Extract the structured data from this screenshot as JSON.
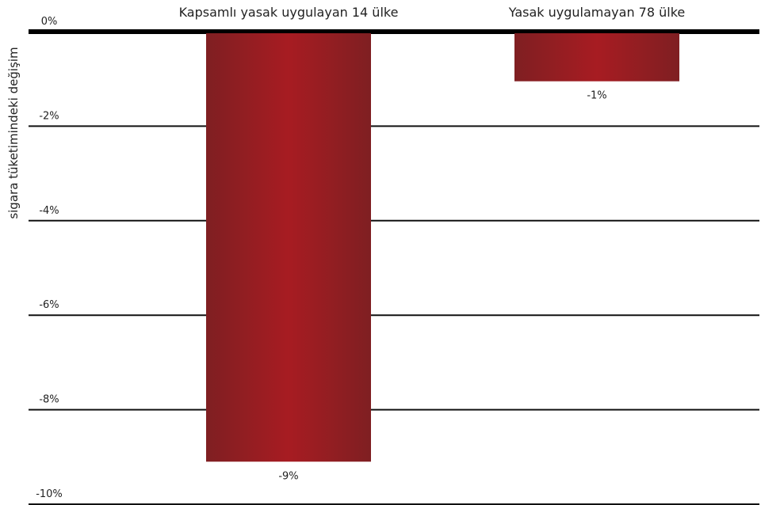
{
  "chart_data": {
    "type": "bar",
    "ylabel": "sigara tüketimindeki değişim",
    "xlabel": "",
    "categories": [
      "Kapsamlı yasak uygulayan 14 ülke",
      "Yasak uygulamayan 78 ülke"
    ],
    "values": [
      -9.1,
      -1.05
    ],
    "value_labels": [
      "-9%",
      "-1%"
    ],
    "ylim": [
      -10,
      0
    ],
    "yticks": [
      0,
      -2,
      -4,
      -6,
      -8,
      -10
    ],
    "ytick_labels": [
      "0%",
      "-2%",
      "-4%",
      "-6%",
      "-8%",
      "-10%"
    ],
    "grid": true,
    "legend": "none",
    "colors": {
      "bar_edge": "#7f1f22",
      "bar_mid": "#a71c22",
      "gridline": "#111111",
      "zero_line": "#000000"
    }
  }
}
